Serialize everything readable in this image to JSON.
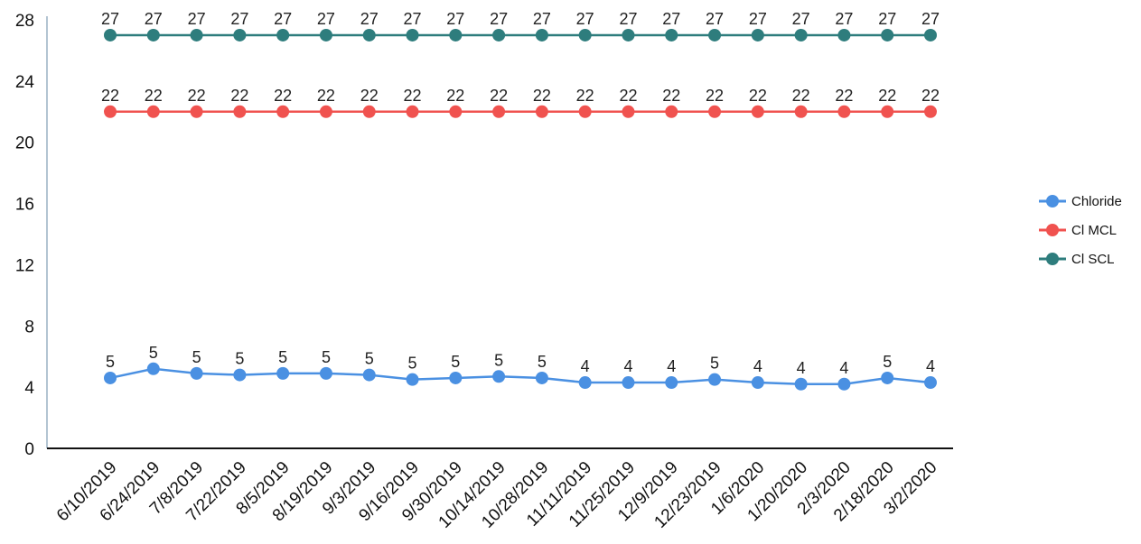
{
  "chart_data": {
    "type": "line",
    "categories": [
      "6/10/2019",
      "6/24/2019",
      "7/8/2019",
      "7/22/2019",
      "8/5/2019",
      "8/19/2019",
      "9/3/2019",
      "9/16/2019",
      "9/30/2019",
      "10/14/2019",
      "10/28/2019",
      "11/11/2019",
      "11/25/2019",
      "12/9/2019",
      "12/23/2019",
      "1/6/2020",
      "1/20/2020",
      "2/3/2020",
      "2/18/2020",
      "3/2/2020"
    ],
    "series": [
      {
        "name": "Chloride",
        "color": "#4a90e2",
        "values": [
          4.6,
          5.2,
          4.9,
          4.8,
          4.9,
          4.9,
          4.8,
          4.5,
          4.6,
          4.7,
          4.6,
          4.3,
          4.3,
          4.3,
          4.5,
          4.3,
          4.2,
          4.2,
          4.6,
          4.3
        ],
        "labels": [
          "5",
          "5",
          "5",
          "5",
          "5",
          "5",
          "5",
          "5",
          "5",
          "5",
          "5",
          "4",
          "4",
          "4",
          "5",
          "4",
          "4",
          "4",
          "5",
          "4"
        ]
      },
      {
        "name": "Cl MCL",
        "color": "#f0524f",
        "values": [
          22,
          22,
          22,
          22,
          22,
          22,
          22,
          22,
          22,
          22,
          22,
          22,
          22,
          22,
          22,
          22,
          22,
          22,
          22,
          22
        ],
        "labels": [
          "22",
          "22",
          "22",
          "22",
          "22",
          "22",
          "22",
          "22",
          "22",
          "22",
          "22",
          "22",
          "22",
          "22",
          "22",
          "22",
          "22",
          "22",
          "22",
          "22"
        ]
      },
      {
        "name": "Cl SCL",
        "color": "#2e7d7d",
        "values": [
          27,
          27,
          27,
          27,
          27,
          27,
          27,
          27,
          27,
          27,
          27,
          27,
          27,
          27,
          27,
          27,
          27,
          27,
          27,
          27
        ],
        "labels": [
          "27",
          "27",
          "27",
          "27",
          "27",
          "27",
          "27",
          "27",
          "27",
          "27",
          "27",
          "27",
          "27",
          "27",
          "27",
          "27",
          "27",
          "27",
          "27",
          "27"
        ]
      }
    ],
    "yticks": [
      "0",
      "4",
      "8",
      "12",
      "16",
      "20",
      "24",
      "28"
    ],
    "ylim": [
      0,
      28
    ],
    "grid": false,
    "legend_position": "right"
  }
}
